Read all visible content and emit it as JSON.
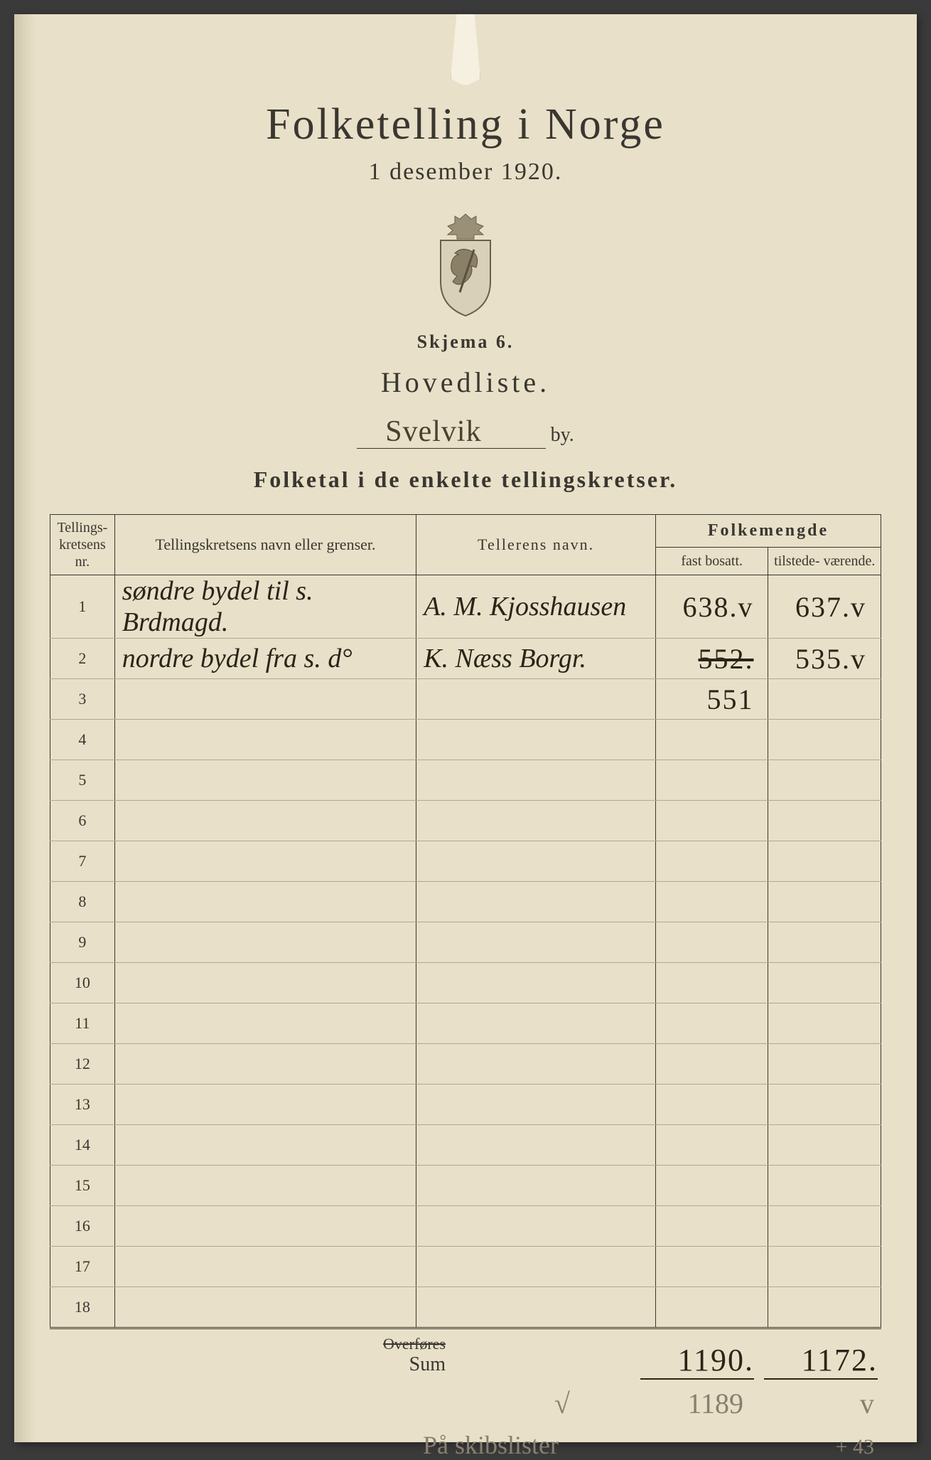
{
  "header": {
    "title": "Folketelling i Norge",
    "date": "1 desember 1920.",
    "skjema": "Skjema 6.",
    "hovedliste": "Hovedliste.",
    "city_handwritten": "Svelvik",
    "by_suffix": "by.",
    "subhead": "Folketal i de enkelte tellingskretser."
  },
  "columns": {
    "nr": "Tellings-\nkretsens\nnr.",
    "navn": "Tellingskretsens navn eller grenser.",
    "teller": "Tellerens navn.",
    "folkemengde": "Folkemengde",
    "fast": "fast\nbosatt.",
    "tilstede": "tilstede-\nværende."
  },
  "rows": [
    {
      "nr": "1",
      "navn": "søndre bydel til s. Brdmagd.",
      "teller": "A. M. Kjosshausen",
      "fast": "638.v",
      "tilstede": "637.v"
    },
    {
      "nr": "2",
      "navn": "nordre bydel fra s.   d°",
      "teller": "K. Næss Borgr.",
      "fast": "552.",
      "tilstede": "535.v"
    },
    {
      "nr": "3",
      "navn": "",
      "teller": "",
      "fast": "551",
      "tilstede": ""
    },
    {
      "nr": "4",
      "navn": "",
      "teller": "",
      "fast": "",
      "tilstede": ""
    },
    {
      "nr": "5",
      "navn": "",
      "teller": "",
      "fast": "",
      "tilstede": ""
    },
    {
      "nr": "6",
      "navn": "",
      "teller": "",
      "fast": "",
      "tilstede": ""
    },
    {
      "nr": "7",
      "navn": "",
      "teller": "",
      "fast": "",
      "tilstede": ""
    },
    {
      "nr": "8",
      "navn": "",
      "teller": "",
      "fast": "",
      "tilstede": ""
    },
    {
      "nr": "9",
      "navn": "",
      "teller": "",
      "fast": "",
      "tilstede": ""
    },
    {
      "nr": "10",
      "navn": "",
      "teller": "",
      "fast": "",
      "tilstede": ""
    },
    {
      "nr": "11",
      "navn": "",
      "teller": "",
      "fast": "",
      "tilstede": ""
    },
    {
      "nr": "12",
      "navn": "",
      "teller": "",
      "fast": "",
      "tilstede": ""
    },
    {
      "nr": "13",
      "navn": "",
      "teller": "",
      "fast": "",
      "tilstede": ""
    },
    {
      "nr": "14",
      "navn": "",
      "teller": "",
      "fast": "",
      "tilstede": ""
    },
    {
      "nr": "15",
      "navn": "",
      "teller": "",
      "fast": "",
      "tilstede": ""
    },
    {
      "nr": "16",
      "navn": "",
      "teller": "",
      "fast": "",
      "tilstede": ""
    },
    {
      "nr": "17",
      "navn": "",
      "teller": "",
      "fast": "",
      "tilstede": ""
    },
    {
      "nr": "18",
      "navn": "",
      "teller": "",
      "fast": "",
      "tilstede": ""
    }
  ],
  "footer": {
    "overfores_printed": "Overføres",
    "sum_scribble": "Sum",
    "sum_fast": "1190.",
    "sum_tilstede": "1172.",
    "pencil_check": "√",
    "pencil_1189": "1189",
    "pencil_v": "v",
    "pencil_plus43": "+ 43",
    "pencil_note": "På skibslister"
  },
  "style": {
    "paper_bg": "#e8e0c8",
    "ink": "#3a3630",
    "hw_ink": "#2a2418",
    "pencil": "#888070",
    "rule_light": "#b0a890",
    "title_fontsize": 62,
    "body_fontsize": 24,
    "hw_fontsize": 38
  }
}
